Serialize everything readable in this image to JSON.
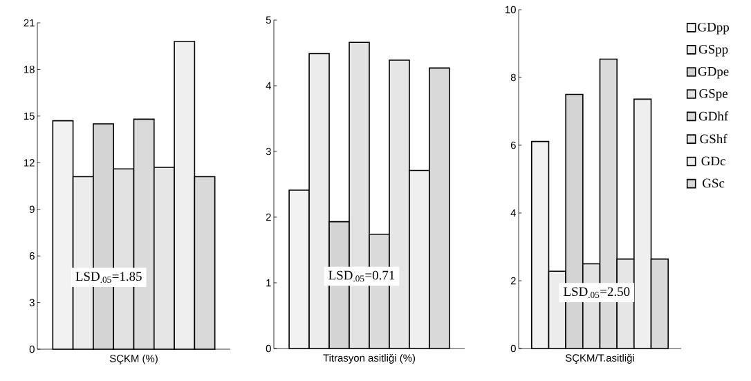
{
  "chart_data": [
    {
      "type": "bar",
      "xlabel": "SÇKM (%)",
      "categories": [
        null
      ],
      "ylim": [
        0,
        21
      ],
      "yticks": [
        0,
        3,
        6,
        9,
        12,
        15,
        18,
        21
      ],
      "annotations": [
        "LSD$_{.05}$=1.85"
      ],
      "series": [
        {
          "color": "#f2f2f2",
          "values": [
            14.7
          ]
        },
        {
          "color": "#ececec",
          "values": [
            11.1
          ]
        },
        {
          "color": "#d4d4d4",
          "values": [
            14.5
          ]
        },
        {
          "color": "#e2e2e2",
          "values": [
            11.6
          ]
        },
        {
          "color": "#dadada",
          "values": [
            14.8
          ]
        },
        {
          "color": "#e6e6e6",
          "values": [
            11.7
          ]
        },
        {
          "color": "#efefef",
          "values": [
            19.8
          ]
        },
        {
          "color": "#d9d9d9",
          "values": [
            11.1
          ]
        }
      ]
    },
    {
      "type": "bar",
      "xlabel": "Titrasyon asitliği (%)",
      "categories": [
        null
      ],
      "ylim": [
        0,
        5
      ],
      "yticks": [
        0,
        1,
        2,
        3,
        4,
        5
      ],
      "annotations": [
        "LSD$_{.05}$=0.71"
      ],
      "series": [
        {
          "color": "#f2f2f2",
          "values": [
            2.41
          ]
        },
        {
          "color": "#ececec",
          "values": [
            4.49
          ]
        },
        {
          "color": "#d4d4d4",
          "values": [
            1.93
          ]
        },
        {
          "color": "#e2e2e2",
          "values": [
            4.66
          ]
        },
        {
          "color": "#dadada",
          "values": [
            1.74
          ]
        },
        {
          "color": "#e6e6e6",
          "values": [
            4.39
          ]
        },
        {
          "color": "#efefef",
          "values": [
            2.71
          ]
        },
        {
          "color": "#d9d9d9",
          "values": [
            4.27
          ]
        }
      ]
    },
    {
      "type": "bar",
      "xlabel": "SÇKM/T.asitliği",
      "categories": [
        null
      ],
      "ylim": [
        0,
        10
      ],
      "yticks": [
        0,
        2,
        4,
        6,
        8,
        10
      ],
      "annotations": [
        "LSD$_{.05}$=2.50"
      ],
      "legend": "right",
      "series": [
        {
          "name": "GDpp",
          "color": "#f2f2f2",
          "values": [
            6.11
          ]
        },
        {
          "name": "GSpp",
          "color": "#ececec",
          "values": [
            2.28
          ]
        },
        {
          "name": "GDpe",
          "color": "#d4d4d4",
          "values": [
            7.5
          ]
        },
        {
          "name": "GSpe",
          "color": "#e2e2e2",
          "values": [
            2.5
          ]
        },
        {
          "name": "GDhf",
          "color": "#dadada",
          "values": [
            8.54
          ]
        },
        {
          "name": "GShf",
          "color": "#e6e6e6",
          "values": [
            2.64
          ]
        },
        {
          "name": "GDc",
          "color": "#efefef",
          "values": [
            7.36
          ]
        },
        {
          "name": "GSc",
          "color": "#d9d9d9",
          "values": [
            2.64
          ]
        }
      ]
    }
  ]
}
